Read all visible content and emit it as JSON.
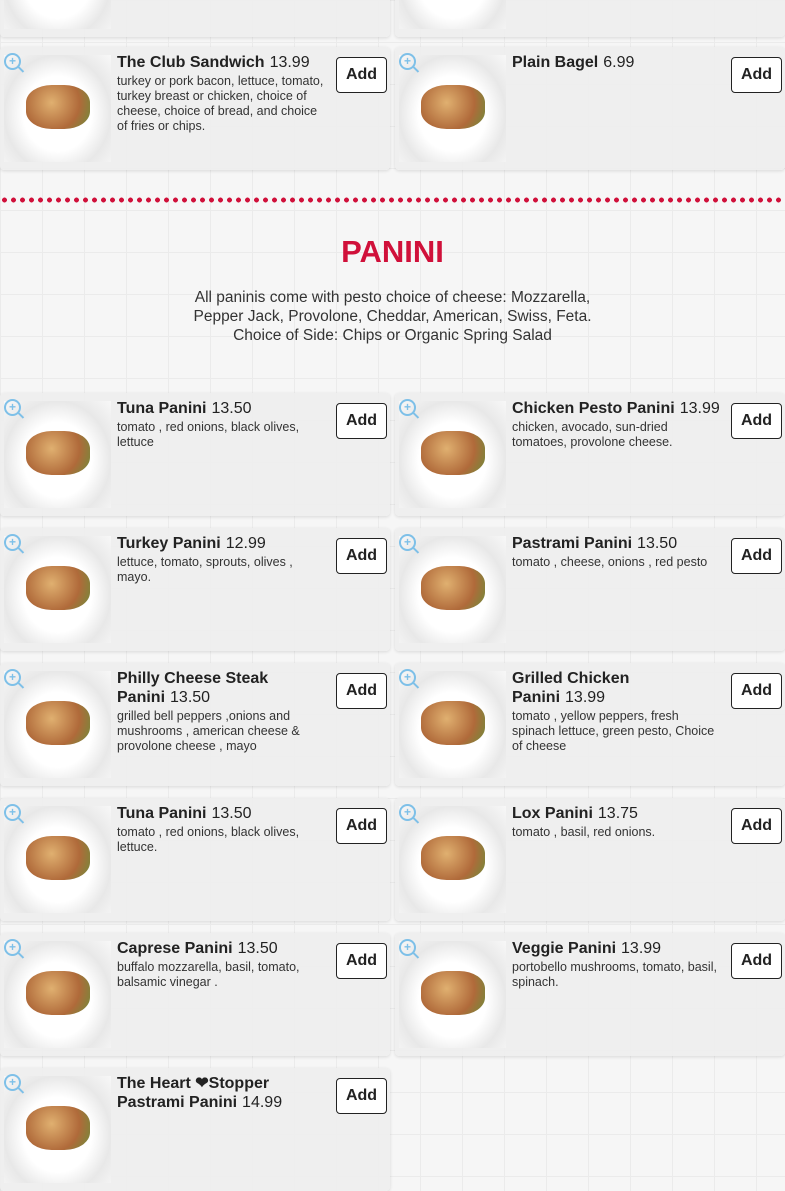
{
  "add_label": "Add",
  "accent_color": "#d0103a",
  "top_items": [
    {
      "title": "The Club Sandwich",
      "price": "13.99",
      "desc": "turkey or pork bacon, lettuce, tomato, turkey breast or chicken, choice of cheese, choice of bread, and choice of fries or chips."
    },
    {
      "title": "Plain Bagel",
      "price": "6.99",
      "desc": ""
    }
  ],
  "section": {
    "title": "PANINI",
    "desc": "All paninis come with pesto choice of cheese: Mozzarella, Pepper Jack, Provolone, Cheddar, American, Swiss, Feta. Choice of Side: Chips or Organic Spring Salad"
  },
  "items": [
    {
      "title": "Tuna Panini",
      "price": "13.50",
      "desc": "tomato , red onions, black olives, lettuce"
    },
    {
      "title": "Chicken Pesto Panini",
      "price": "13.99",
      "desc": "chicken, avocado, sun-dried tomatoes, provolone cheese."
    },
    {
      "title": "Turkey Panini",
      "price": "12.99",
      "desc": "lettuce, tomato, sprouts, olives , mayo."
    },
    {
      "title": "Pastrami Panini",
      "price": "13.50",
      "desc": "tomato , cheese, onions , red pesto"
    },
    {
      "title": "Philly Cheese Steak Panini",
      "price": "13.50",
      "desc": "grilled bell peppers ,onions and mushrooms , american cheese & provolone cheese , mayo"
    },
    {
      "title": "Grilled Chicken Panini",
      "price": "13.99",
      "desc": "tomato , yellow peppers, fresh spinach lettuce, green pesto, Choice of cheese"
    },
    {
      "title": "Tuna Panini",
      "price": "13.50",
      "desc": "tomato , red onions, black olives, lettuce."
    },
    {
      "title": "Lox Panini",
      "price": "13.75",
      "desc": "tomato , basil, red onions."
    },
    {
      "title": "Caprese Panini",
      "price": "13.50",
      "desc": "buffalo mozzarella, basil, tomato, balsamic vinegar ."
    },
    {
      "title": "Veggie Panini",
      "price": "13.99",
      "desc": "portobello mushrooms, tomato, basil, spinach."
    },
    {
      "title": "The Heart ❤Stopper Pastrami Panini",
      "price": "14.99",
      "desc": ""
    }
  ]
}
